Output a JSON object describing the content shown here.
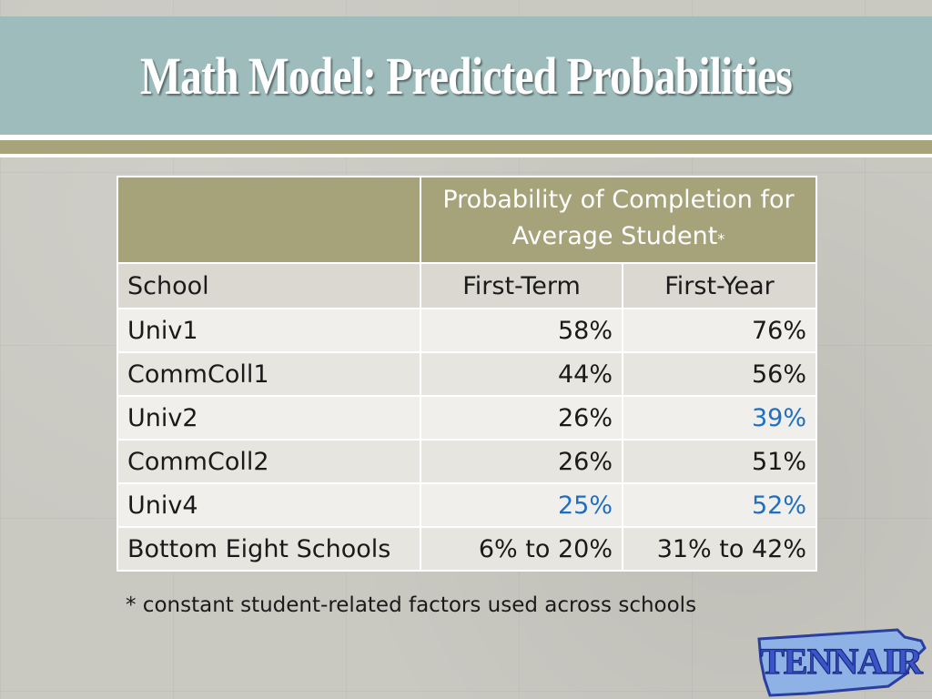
{
  "slide": {
    "title": "Math Model: Predicted Probabilities",
    "footnote": "* constant student-related factors used across schools",
    "logo_text": "TENNAIR"
  },
  "table": {
    "group_header_line1": "Probability of Completion for",
    "group_header_line2": "Average Student",
    "group_header_mark": "*",
    "columns": [
      "School",
      "First-Term",
      "First-Year"
    ],
    "rows": [
      {
        "school": "Univ1",
        "first_term": "58%",
        "first_year": "76%"
      },
      {
        "school": "CommColl1",
        "first_term": "44%",
        "first_year": "56%"
      },
      {
        "school": "Univ2",
        "first_term": "26%",
        "first_year": "39%"
      },
      {
        "school": "CommColl2",
        "first_term": "26%",
        "first_year": "51%"
      },
      {
        "school": "Univ4",
        "first_term": "25%",
        "first_year": "52%"
      },
      {
        "school": "Bottom Eight Schools",
        "first_term": "6% to 20%",
        "first_year": "31% to 42%"
      }
    ]
  },
  "colors": {
    "title_band": "#9ebcbc",
    "accent_olive": "#a6a27a",
    "highlight_blue": "#1f6fc0"
  }
}
